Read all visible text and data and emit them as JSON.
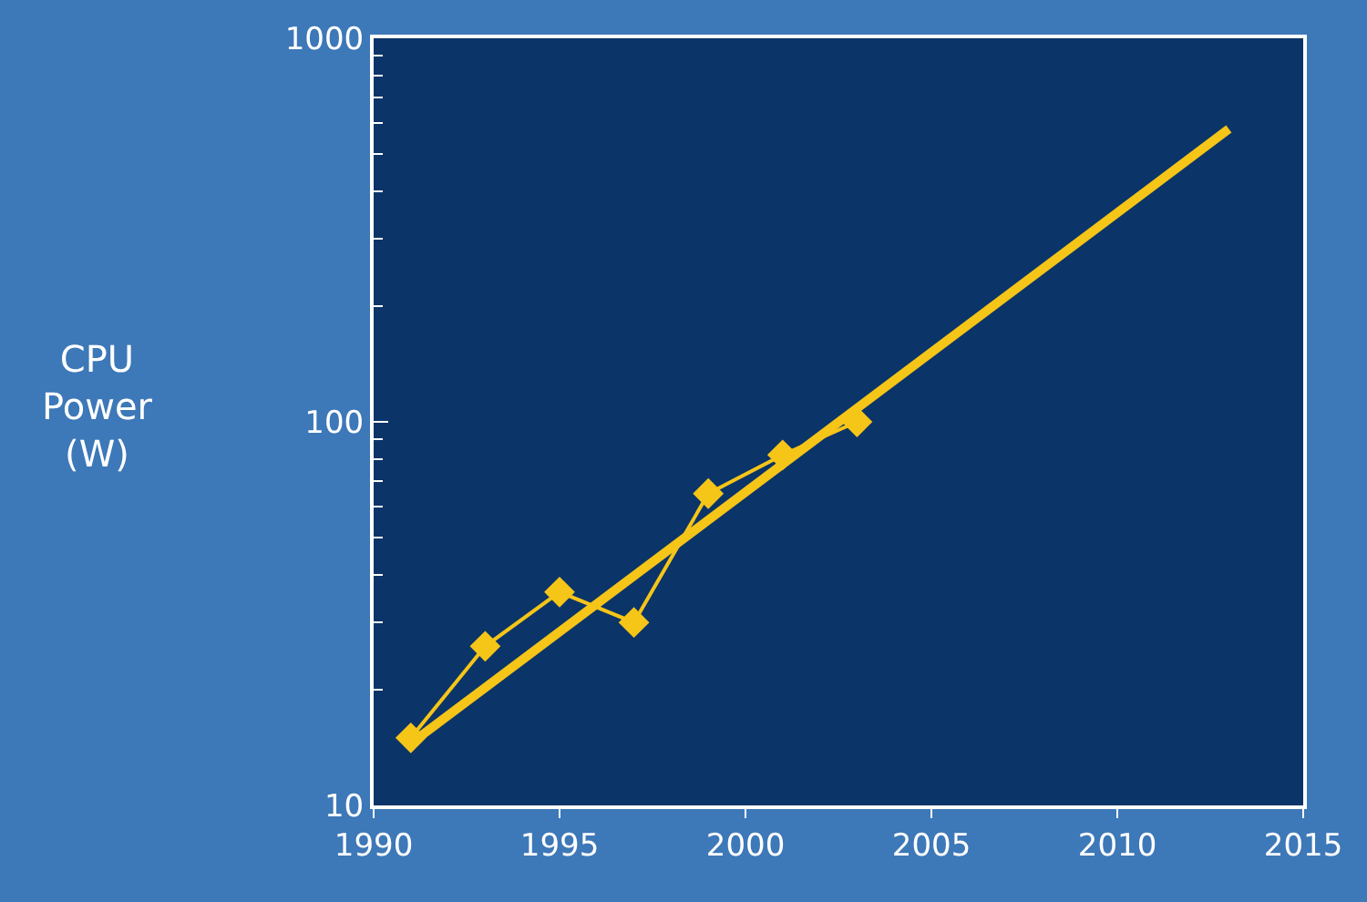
{
  "chart_data": {
    "type": "line",
    "ylabel": "CPU\nPower\n(W)",
    "log": "y",
    "xlim": [
      1990,
      2015
    ],
    "ylim": [
      10,
      1000
    ],
    "xticks": [
      1990,
      1995,
      2000,
      2005,
      2010,
      2015
    ],
    "yticks": [
      10,
      100,
      1000
    ],
    "grid": false,
    "series": [
      {
        "color": "#f5c518",
        "x": [
          1991,
          1993,
          1995,
          1997,
          1999,
          2001,
          2003
        ],
        "values": [
          15,
          26,
          36,
          30,
          65,
          82,
          100
        ],
        "marker": "diamond",
        "line_style": "solid"
      },
      {
        "color": "#f5c518",
        "x": [
          1991,
          2013
        ],
        "values": [
          14.5,
          580
        ],
        "marker": "none",
        "line_style": "solid"
      }
    ]
  }
}
